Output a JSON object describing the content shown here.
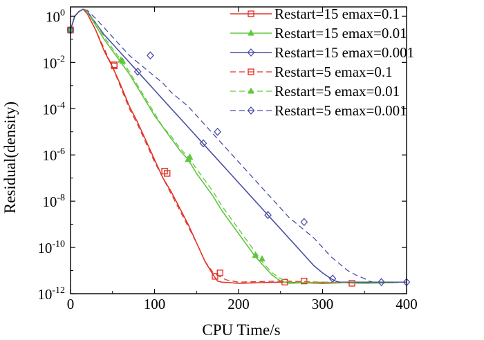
{
  "chart_data": {
    "type": "line",
    "title": "",
    "xlabel": "CPU Time/s",
    "ylabel": "Residual(density)",
    "xlim": [
      0,
      400
    ],
    "ylim_log10": [
      -12,
      0.4
    ],
    "y_scale": "log",
    "x_ticks": [
      0,
      100,
      200,
      300,
      400
    ],
    "y_ticks": [
      {
        "base": "10",
        "exp": "0"
      },
      {
        "base": "10",
        "exp": "-2"
      },
      {
        "base": "10",
        "exp": "-4"
      },
      {
        "base": "10",
        "exp": "-6"
      },
      {
        "base": "10",
        "exp": "-8"
      },
      {
        "base": "10",
        "exp": "-10"
      },
      {
        "base": "10",
        "exp": "-12"
      }
    ],
    "legend_position": "top-right",
    "series": [
      {
        "name": "Restart=15 emax=0.1",
        "color": "#e0352b",
        "dash": "solid",
        "marker": "square",
        "x": [
          0,
          5,
          10,
          15,
          20,
          30,
          40,
          50,
          60,
          70,
          80,
          90,
          100,
          110,
          120,
          130,
          140,
          150,
          160,
          170,
          175,
          180,
          200,
          250,
          300,
          350,
          380
        ],
        "log10y": [
          -0.6,
          0.0,
          0.2,
          0.3,
          0.1,
          -0.6,
          -1.5,
          -2.2,
          -3.0,
          -3.9,
          -4.6,
          -5.4,
          -6.2,
          -7.0,
          -7.6,
          -8.3,
          -9.0,
          -9.8,
          -10.6,
          -11.2,
          -11.45,
          -11.5,
          -11.55,
          -11.5,
          -11.55,
          -11.5,
          -11.52
        ],
        "marker_x": [
          0,
          52,
          112,
          172
        ],
        "marker_log10y": [
          -0.6,
          -2.15,
          -6.7,
          -11.25
        ]
      },
      {
        "name": "Restart=15 emax=0.01",
        "color": "#5ec63a",
        "dash": "solid",
        "marker": "triangle",
        "x": [
          0,
          5,
          10,
          15,
          20,
          30,
          40,
          50,
          60,
          70,
          80,
          90,
          100,
          110,
          120,
          130,
          140,
          150,
          160,
          170,
          180,
          190,
          200,
          210,
          220,
          230,
          240,
          250,
          255,
          260,
          300,
          350,
          390
        ],
        "log10y": [
          -0.6,
          0.0,
          0.2,
          0.3,
          0.2,
          -0.4,
          -1.0,
          -1.5,
          -2.0,
          -2.5,
          -3.1,
          -3.7,
          -4.3,
          -4.8,
          -5.3,
          -5.8,
          -6.2,
          -6.8,
          -7.3,
          -7.8,
          -8.4,
          -8.9,
          -9.4,
          -9.9,
          -10.4,
          -10.8,
          -11.2,
          -11.45,
          -11.5,
          -11.55,
          -11.5,
          -11.55,
          -11.52
        ],
        "marker_x": [
          0,
          62,
          140,
          220
        ],
        "marker_log10y": [
          -0.6,
          -1.95,
          -6.2,
          -10.35
        ]
      },
      {
        "name": "Restart=15 emax=0.001",
        "color": "#4a4fa6",
        "dash": "solid",
        "marker": "diamond",
        "x": [
          0,
          5,
          10,
          15,
          20,
          30,
          40,
          50,
          60,
          70,
          80,
          90,
          100,
          110,
          120,
          130,
          140,
          150,
          160,
          170,
          180,
          190,
          200,
          210,
          220,
          230,
          240,
          250,
          260,
          270,
          280,
          290,
          300,
          310,
          315,
          320,
          350,
          400
        ],
        "log10y": [
          -0.6,
          0.0,
          0.2,
          0.3,
          0.2,
          -0.3,
          -0.8,
          -1.2,
          -1.6,
          -2.0,
          -2.4,
          -2.8,
          -3.2,
          -3.6,
          -4.0,
          -4.4,
          -4.8,
          -5.2,
          -5.6,
          -6.0,
          -6.4,
          -6.8,
          -7.2,
          -7.6,
          -8.0,
          -8.4,
          -8.8,
          -9.2,
          -9.6,
          -10.0,
          -10.4,
          -10.8,
          -11.1,
          -11.35,
          -11.45,
          -11.5,
          -11.5,
          -11.5
        ],
        "marker_x": [
          0,
          80,
          158,
          235,
          312
        ],
        "marker_log10y": [
          -0.6,
          -2.4,
          -5.5,
          -8.6,
          -11.35
        ]
      },
      {
        "name": "Restart=5 emax=0.1",
        "color": "#e0352b",
        "dash": "dashed",
        "marker": "square",
        "x": [
          0,
          5,
          10,
          15,
          20,
          30,
          40,
          50,
          60,
          70,
          80,
          90,
          100,
          110,
          120,
          130,
          140,
          150,
          160,
          170,
          180,
          185,
          200,
          250,
          300,
          350,
          380
        ],
        "log10y": [
          -0.6,
          0.0,
          0.2,
          0.3,
          0.1,
          -0.6,
          -1.4,
          -2.2,
          -3.1,
          -4.0,
          -4.7,
          -5.5,
          -6.3,
          -7.0,
          -7.7,
          -8.4,
          -9.1,
          -9.8,
          -10.6,
          -11.1,
          -11.3,
          -11.4,
          -11.5,
          -11.45,
          -11.5,
          -11.55,
          -11.5
        ],
        "marker_x": [
          0,
          52,
          115,
          178,
          255,
          278,
          335
        ],
        "marker_log10y": [
          -0.6,
          -2.1,
          -6.8,
          -11.1,
          -11.5,
          -11.45,
          -11.55
        ]
      },
      {
        "name": "Restart=5 emax=0.01",
        "color": "#5ec63a",
        "dash": "dashed",
        "marker": "triangle",
        "x": [
          0,
          5,
          10,
          15,
          20,
          30,
          40,
          50,
          60,
          70,
          80,
          90,
          100,
          110,
          120,
          130,
          140,
          150,
          160,
          170,
          180,
          190,
          200,
          210,
          220,
          230,
          240,
          250,
          260,
          270,
          300,
          350,
          390
        ],
        "log10y": [
          -0.6,
          0.0,
          0.2,
          0.3,
          0.2,
          -0.3,
          -0.9,
          -1.4,
          -1.9,
          -2.4,
          -3.0,
          -3.6,
          -4.2,
          -4.8,
          -5.2,
          -5.7,
          -6.1,
          -6.6,
          -7.1,
          -7.6,
          -8.2,
          -8.7,
          -9.2,
          -9.7,
          -10.2,
          -10.7,
          -11.1,
          -11.35,
          -11.5,
          -11.5,
          -11.5,
          -11.55,
          -11.5
        ],
        "marker_x": [
          0,
          60,
          142,
          228
        ],
        "marker_log10y": [
          -0.6,
          -1.9,
          -6.1,
          -10.5
        ]
      },
      {
        "name": "Restart=5 emax=0.001",
        "color": "#4a4fa6",
        "dash": "dashed",
        "marker": "diamond",
        "x": [
          0,
          5,
          10,
          15,
          20,
          30,
          40,
          50,
          60,
          70,
          80,
          90,
          100,
          110,
          120,
          130,
          140,
          150,
          160,
          170,
          180,
          190,
          200,
          210,
          220,
          230,
          240,
          250,
          260,
          270,
          280,
          290,
          300,
          310,
          320,
          330,
          340,
          350,
          355,
          360,
          380,
          400
        ],
        "log10y": [
          -0.6,
          0.0,
          0.2,
          0.3,
          0.25,
          -0.1,
          -0.5,
          -0.9,
          -1.3,
          -1.7,
          -2.0,
          -2.3,
          -2.6,
          -2.9,
          -3.3,
          -3.6,
          -3.9,
          -4.3,
          -4.7,
          -5.1,
          -5.5,
          -5.9,
          -6.3,
          -6.7,
          -7.1,
          -7.5,
          -7.9,
          -8.3,
          -8.7,
          -9.0,
          -9.3,
          -9.6,
          -10.0,
          -10.4,
          -10.7,
          -11.0,
          -11.2,
          -11.35,
          -11.45,
          -11.5,
          -11.5,
          -11.5
        ],
        "marker_x": [
          0,
          95,
          175,
          278,
          370,
          400
        ],
        "marker_log10y": [
          -0.6,
          -1.7,
          -5.0,
          -8.9,
          -11.5,
          -11.5
        ]
      }
    ]
  }
}
